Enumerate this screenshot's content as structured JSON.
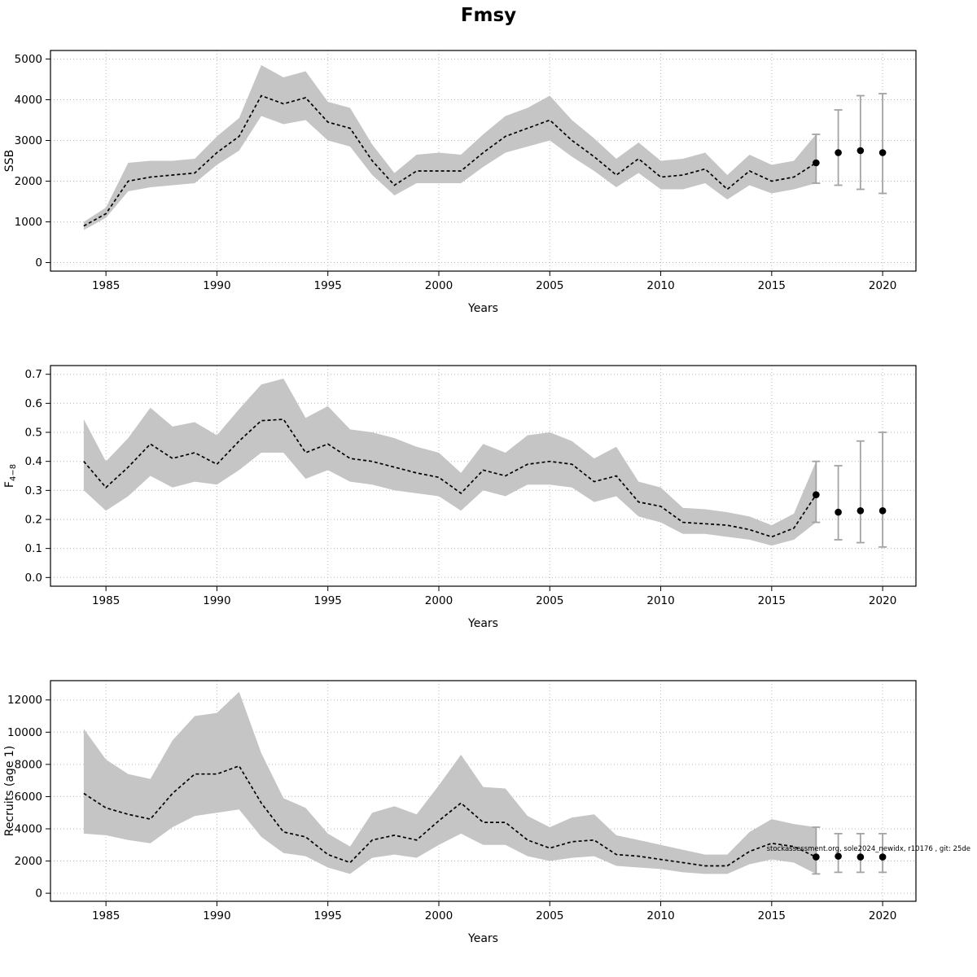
{
  "title": "Fmsy",
  "watermark": "stockassessment.org, sole2024_newidx, r10176 , git: 25de",
  "chart_data": [
    {
      "type": "line",
      "panel": "SSB",
      "xlabel": "Years",
      "ylabel": "SSB",
      "ylabel_sub": "",
      "xlim": [
        1982.5,
        2021.5
      ],
      "ylim": [
        -210,
        5210
      ],
      "xticks": [
        1985,
        1990,
        1995,
        2000,
        2005,
        2010,
        2015,
        2020
      ],
      "xticklabels": [
        "1985",
        "1990",
        "1995",
        "2000",
        "2005",
        "2010",
        "2015",
        "2020"
      ],
      "yticks": [
        0,
        1000,
        2000,
        3000,
        4000,
        5000
      ],
      "yticklabels": [
        "0",
        "1000",
        "2000",
        "3000",
        "4000",
        "5000"
      ],
      "grid": true,
      "years": [
        1984,
        1985,
        1986,
        1987,
        1988,
        1989,
        1990,
        1991,
        1992,
        1993,
        1994,
        1995,
        1996,
        1997,
        1998,
        1999,
        2000,
        2001,
        2002,
        2003,
        2004,
        2005,
        2006,
        2007,
        2008,
        2009,
        2010,
        2011,
        2012,
        2013,
        2014,
        2015,
        2016,
        2017
      ],
      "est": [
        900,
        1200,
        2000,
        2100,
        2150,
        2200,
        2700,
        3100,
        4100,
        3900,
        4050,
        3450,
        3300,
        2500,
        1900,
        2250,
        2250,
        2250,
        2700,
        3100,
        3300,
        3500,
        3000,
        2600,
        2150,
        2550,
        2100,
        2150,
        2300,
        1800,
        2250,
        2000,
        2100,
        2450
      ],
      "lo": [
        800,
        1100,
        1750,
        1850,
        1900,
        1950,
        2400,
        2750,
        3600,
        3400,
        3500,
        3000,
        2850,
        2150,
        1650,
        1950,
        1950,
        1950,
        2350,
        2700,
        2850,
        3000,
        2600,
        2250,
        1850,
        2200,
        1800,
        1800,
        1950,
        1550,
        1900,
        1700,
        1800,
        1950
      ],
      "hi": [
        1000,
        1350,
        2450,
        2500,
        2500,
        2550,
        3100,
        3550,
        4850,
        4550,
        4700,
        3950,
        3800,
        2900,
        2200,
        2650,
        2700,
        2650,
        3150,
        3600,
        3800,
        4100,
        3500,
        3050,
        2550,
        2950,
        2500,
        2550,
        2700,
        2150,
        2650,
        2400,
        2500,
        3150
      ],
      "forecast": {
        "years": [
          2017,
          2018,
          2019,
          2020
        ],
        "est": [
          2450,
          2700,
          2750,
          2700
        ],
        "lo": [
          1950,
          1900,
          1800,
          1700
        ],
        "hi": [
          3150,
          3750,
          4100,
          4150
        ]
      }
    },
    {
      "type": "line",
      "panel": "F",
      "xlabel": "Years",
      "ylabel": "F",
      "ylabel_sub": "4−8",
      "xlim": [
        1982.5,
        2021.5
      ],
      "ylim": [
        -0.03,
        0.73
      ],
      "xticks": [
        1985,
        1990,
        1995,
        2000,
        2005,
        2010,
        2015,
        2020
      ],
      "xticklabels": [
        "1985",
        "1990",
        "1995",
        "2000",
        "2005",
        "2010",
        "2015",
        "2020"
      ],
      "yticks": [
        0.0,
        0.1,
        0.2,
        0.3,
        0.4,
        0.5,
        0.6,
        0.7
      ],
      "yticklabels": [
        "0.0",
        "0.1",
        "0.2",
        "0.3",
        "0.4",
        "0.5",
        "0.6",
        "0.7"
      ],
      "grid": true,
      "years": [
        1984,
        1985,
        1986,
        1987,
        1988,
        1989,
        1990,
        1991,
        1992,
        1993,
        1994,
        1995,
        1996,
        1997,
        1998,
        1999,
        2000,
        2001,
        2002,
        2003,
        2004,
        2005,
        2006,
        2007,
        2008,
        2009,
        2010,
        2011,
        2012,
        2013,
        2014,
        2015,
        2016,
        2017
      ],
      "est": [
        0.4,
        0.31,
        0.38,
        0.46,
        0.41,
        0.43,
        0.39,
        0.47,
        0.54,
        0.545,
        0.43,
        0.46,
        0.41,
        0.4,
        0.38,
        0.36,
        0.345,
        0.29,
        0.37,
        0.35,
        0.39,
        0.4,
        0.39,
        0.33,
        0.35,
        0.26,
        0.245,
        0.19,
        0.185,
        0.18,
        0.165,
        0.14,
        0.17,
        0.285
      ],
      "lo": [
        0.3,
        0.23,
        0.28,
        0.35,
        0.31,
        0.33,
        0.32,
        0.37,
        0.43,
        0.43,
        0.34,
        0.37,
        0.33,
        0.32,
        0.3,
        0.29,
        0.28,
        0.23,
        0.3,
        0.28,
        0.32,
        0.32,
        0.31,
        0.26,
        0.28,
        0.21,
        0.19,
        0.15,
        0.15,
        0.14,
        0.13,
        0.11,
        0.13,
        0.19
      ],
      "hi": [
        0.545,
        0.4,
        0.48,
        0.585,
        0.52,
        0.535,
        0.49,
        0.58,
        0.665,
        0.685,
        0.55,
        0.59,
        0.51,
        0.5,
        0.48,
        0.45,
        0.43,
        0.36,
        0.46,
        0.43,
        0.49,
        0.5,
        0.47,
        0.41,
        0.45,
        0.33,
        0.31,
        0.24,
        0.235,
        0.225,
        0.21,
        0.18,
        0.22,
        0.4
      ],
      "forecast": {
        "years": [
          2017,
          2018,
          2019,
          2020
        ],
        "est": [
          0.285,
          0.225,
          0.23,
          0.23
        ],
        "lo": [
          0.19,
          0.13,
          0.12,
          0.105
        ],
        "hi": [
          0.4,
          0.385,
          0.47,
          0.5
        ]
      }
    },
    {
      "type": "line",
      "panel": "Recruits",
      "xlabel": "Years",
      "ylabel": "Recruits (age 1)",
      "ylabel_sub": "",
      "xlim": [
        1982.5,
        2021.5
      ],
      "ylim": [
        -500,
        13200
      ],
      "xticks": [
        1985,
        1990,
        1995,
        2000,
        2005,
        2010,
        2015,
        2020
      ],
      "xticklabels": [
        "1985",
        "1990",
        "1995",
        "2000",
        "2005",
        "2010",
        "2015",
        "2020"
      ],
      "yticks": [
        0,
        2000,
        4000,
        6000,
        8000,
        10000,
        12000
      ],
      "yticklabels": [
        "0",
        "2000",
        "4000",
        "6000",
        "8000",
        "10000",
        "12000"
      ],
      "grid": true,
      "years": [
        1984,
        1985,
        1986,
        1987,
        1988,
        1989,
        1990,
        1991,
        1992,
        1993,
        1994,
        1995,
        1996,
        1997,
        1998,
        1999,
        2000,
        2001,
        2002,
        2003,
        2004,
        2005,
        2006,
        2007,
        2008,
        2009,
        2010,
        2011,
        2012,
        2013,
        2014,
        2015,
        2016,
        2017
      ],
      "est": [
        6200,
        5300,
        4900,
        4600,
        6200,
        7400,
        7400,
        7900,
        5600,
        3800,
        3500,
        2400,
        1900,
        3300,
        3600,
        3300,
        4500,
        5600,
        4400,
        4400,
        3300,
        2800,
        3200,
        3300,
        2400,
        2300,
        2100,
        1900,
        1700,
        1700,
        2600,
        3100,
        2900,
        2250
      ],
      "lo": [
        3700,
        3600,
        3300,
        3100,
        4100,
        4800,
        5000,
        5200,
        3500,
        2500,
        2300,
        1600,
        1200,
        2200,
        2400,
        2200,
        3000,
        3700,
        3000,
        3000,
        2300,
        2000,
        2200,
        2300,
        1700,
        1600,
        1500,
        1300,
        1200,
        1200,
        1800,
        2100,
        1900,
        1200
      ],
      "hi": [
        10200,
        8300,
        7400,
        7100,
        9500,
        11000,
        11200,
        12500,
        8700,
        5900,
        5300,
        3700,
        2900,
        5000,
        5400,
        4900,
        6700,
        8600,
        6600,
        6500,
        4800,
        4100,
        4700,
        4900,
        3600,
        3300,
        3000,
        2700,
        2400,
        2400,
        3800,
        4600,
        4300,
        4100
      ],
      "forecast": {
        "years": [
          2017,
          2018,
          2019,
          2020
        ],
        "est": [
          2250,
          2300,
          2250,
          2250
        ],
        "lo": [
          1200,
          1300,
          1300,
          1300
        ],
        "hi": [
          4100,
          3700,
          3700,
          3700
        ]
      }
    }
  ]
}
